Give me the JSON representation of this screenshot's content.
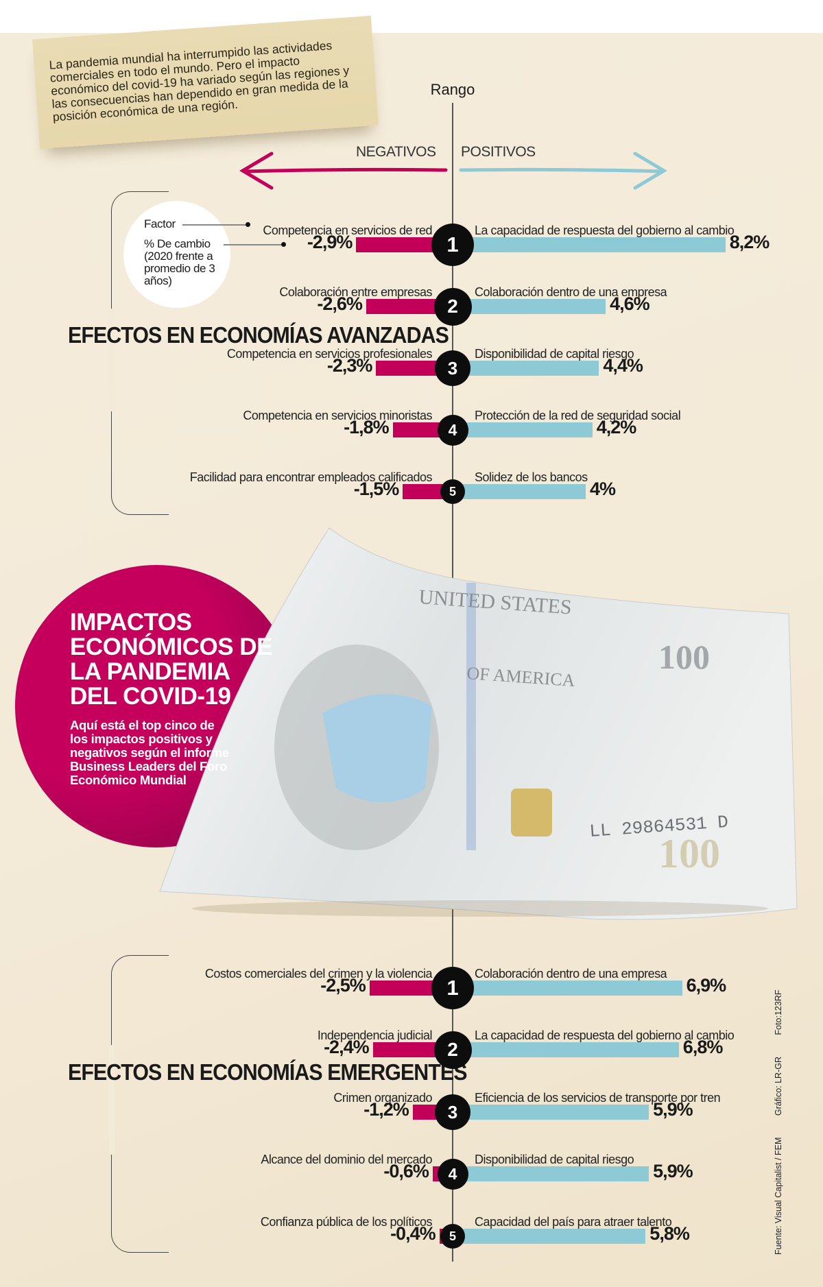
{
  "intro": "La pandemia mundial ha interrumpido las actividades comerciales en todo el mundo. Pero el impacto económico del covid-19 ha variado según las regiones y las consecuencias han dependido en gran medida de la posición económica de una región.",
  "axis": {
    "title": "Rango",
    "negative": "NEGATIVOS",
    "positive": "POSITIVOS"
  },
  "legend": {
    "factor": "Factor",
    "change": "% De cambio (2020 frente a promedio de 3 años)"
  },
  "main": {
    "title": "IMPACTOS ECONÓMICOS DE LA PANDEMIA DEL COVID-19",
    "sub_pre": "Aquí está el ",
    "sub_bold": "top cinco",
    "sub_post": " de los impactos positivos y negativos según el informe Business Leaders del Foro Económico Mundial"
  },
  "credits": {
    "source": "Fuente: Visual Capitalist / FEM",
    "graphic": "Gráfico: LR-GR",
    "photo": "Foto:123RF"
  },
  "colors": {
    "negative": "#c2005a",
    "positive": "#8ecad5"
  },
  "chart_data": [
    {
      "type": "bar",
      "title": "EFECTOS EN ECONOMÍAS AVANZADAS",
      "ylabel": "% De cambio (2020 frente a promedio de 3 años)",
      "rows": [
        {
          "rank": "1",
          "neg_label": "Competencia en servicios de red",
          "neg_value": -2.9,
          "neg_text": "-2,9%",
          "pos_label": "La capacidad de respuesta del gobierno al cambio",
          "pos_value": 8.2,
          "pos_text": "8,2%"
        },
        {
          "rank": "2",
          "neg_label": "Colaboración entre empresas",
          "neg_value": -2.6,
          "neg_text": "-2,6%",
          "pos_label": "Colaboración dentro de una empresa",
          "pos_value": 4.6,
          "pos_text": "4,6%"
        },
        {
          "rank": "3",
          "neg_label": "Competencia en servicios profesionales",
          "neg_value": -2.3,
          "neg_text": "-2,3%",
          "pos_label": "Disponibilidad de capital riesgo",
          "pos_value": 4.4,
          "pos_text": "4,4%"
        },
        {
          "rank": "4",
          "neg_label": "Competencia en servicios minoristas",
          "neg_value": -1.8,
          "neg_text": "-1,8%",
          "pos_label": "Protección de la red de seguridad social",
          "pos_value": 4.2,
          "pos_text": "4,2%"
        },
        {
          "rank": "5",
          "neg_label": "Facilidad para encontrar empleados calificados",
          "neg_value": -1.5,
          "neg_text": "-1,5%",
          "pos_label": "Solidez de los bancos",
          "pos_value": 4.0,
          "pos_text": "4%"
        }
      ]
    },
    {
      "type": "bar",
      "title": "EFECTOS EN ECONOMÍAS EMERGENTES",
      "ylabel": "% De cambio (2020 frente a promedio de 3 años)",
      "rows": [
        {
          "rank": "1",
          "neg_label": "Costos comerciales del crimen y la violencia",
          "neg_value": -2.5,
          "neg_text": "-2,5%",
          "pos_label": "Colaboración dentro de una empresa",
          "pos_value": 6.9,
          "pos_text": "6,9%"
        },
        {
          "rank": "2",
          "neg_label": "Independencia judicial",
          "neg_value": -2.4,
          "neg_text": "-2,4%",
          "pos_label": "La capacidad de respuesta del gobierno al cambio",
          "pos_value": 6.8,
          "pos_text": "6,8%"
        },
        {
          "rank": "3",
          "neg_label": "Crimen organizado",
          "neg_value": -1.2,
          "neg_text": "-1,2%",
          "pos_label": "Eficiencia de los servicios de transporte por tren",
          "pos_value": 5.9,
          "pos_text": "5,9%"
        },
        {
          "rank": "4",
          "neg_label": "Alcance del dominio del mercado",
          "neg_value": -0.6,
          "neg_text": "-0,6%",
          "pos_label": "Disponibilidad de capital riesgo",
          "pos_value": 5.9,
          "pos_text": "5,9%"
        },
        {
          "rank": "5",
          "neg_label": "Confianza pública de los políticos",
          "neg_value": -0.4,
          "neg_text": "-0,4%",
          "pos_label": "Capacidad del país para atraer talento",
          "pos_value": 5.8,
          "pos_text": "5,8%"
        }
      ]
    }
  ]
}
